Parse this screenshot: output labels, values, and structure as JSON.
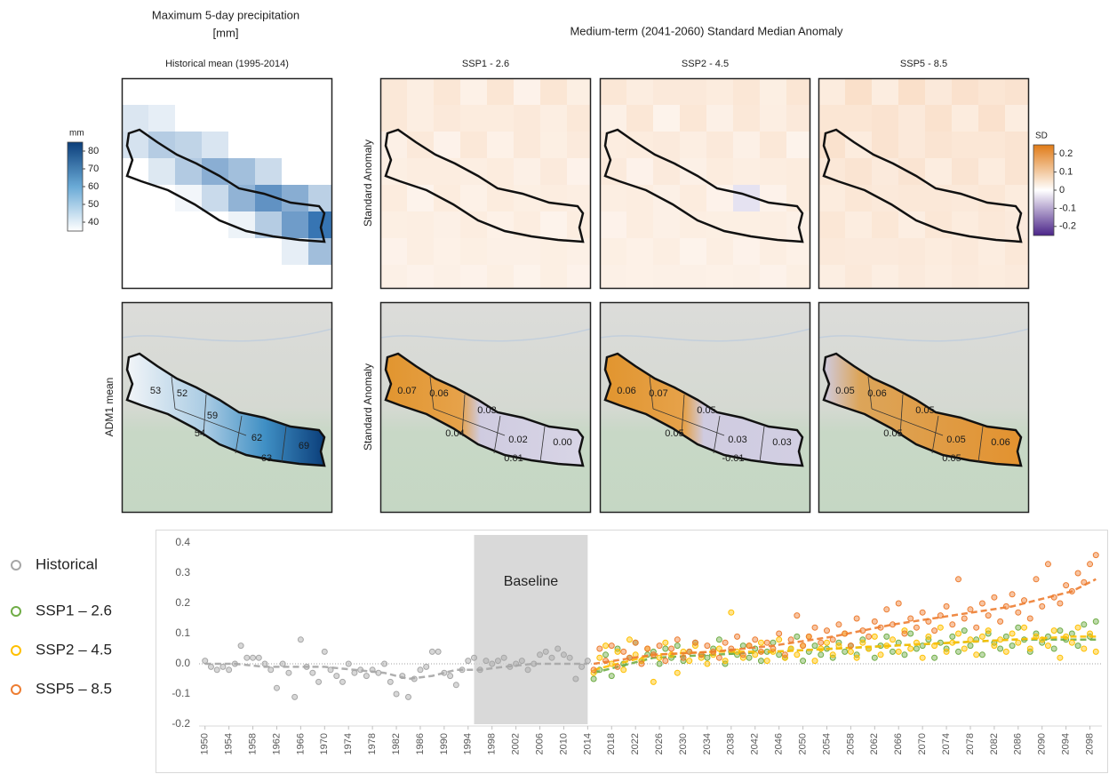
{
  "header": {
    "left_title": [
      "Maximum 5-day precipitation",
      "[mm]"
    ],
    "right_title": "Medium-term (2041-2060) Standard Median Anomaly"
  },
  "map_panels": {
    "columns": [
      "Historical mean (1995-2014)",
      "SSP1 - 2.6",
      "SSP2 - 4.5",
      "SSP5 - 8.5"
    ],
    "hist_row_label": "ADM1 mean",
    "anomaly_row_labels": [
      "Standard Anomaly",
      "Standard Anomaly"
    ],
    "adm1_labels": [
      [
        "53",
        "52",
        "59",
        "54",
        "62",
        "63",
        "69"
      ],
      [
        "0.07",
        "0.06",
        "0.03",
        "0.04",
        "0.02",
        "0.01",
        "0.00"
      ],
      [
        "0.06",
        "0.07",
        "0.05",
        "0.05",
        "0.03",
        "-0.01",
        "0.03"
      ],
      [
        "0.05",
        "0.06",
        "0.05",
        "0.05",
        "0.05",
        "0.05",
        "0.06"
      ]
    ]
  },
  "colorbars": {
    "mm": {
      "unit": "mm",
      "lim": [
        35,
        85
      ],
      "ticks": [
        40,
        50,
        60,
        70,
        80
      ]
    },
    "sd": {
      "unit": "SD",
      "lim": [
        -0.25,
        0.25
      ],
      "ticks": [
        0.2,
        0.1,
        0,
        -0.1,
        -0.2
      ]
    }
  },
  "chart_data": {
    "type": "scatter",
    "xlim": [
      1949,
      2100
    ],
    "xticks": [
      1950,
      1954,
      1958,
      1962,
      1966,
      1970,
      1974,
      1978,
      1982,
      1986,
      1990,
      1994,
      1998,
      2002,
      2006,
      2010,
      2014,
      2018,
      2022,
      2026,
      2030,
      2034,
      2038,
      2042,
      2046,
      2050,
      2054,
      2058,
      2062,
      2066,
      2070,
      2074,
      2078,
      2082,
      2086,
      2090,
      2094,
      2098
    ],
    "ylim": [
      -0.2,
      0.4
    ],
    "yticks": [
      -0.2,
      -0.1,
      {
        "value": 0,
        "label": "0.0"
      },
      0.1,
      0.2,
      0.3,
      0.4
    ],
    "grid": false,
    "legend": "left",
    "baseline": {
      "label": "Baseline",
      "range": [
        1995,
        2014
      ]
    },
    "series": [
      {
        "name": "Historical",
        "color": "#a6a6a6",
        "x": [
          1950,
          1951,
          1952,
          1953,
          1954,
          1955,
          1956,
          1957,
          1958,
          1959,
          1960,
          1961,
          1962,
          1963,
          1964,
          1965,
          1966,
          1967,
          1968,
          1969,
          1970,
          1971,
          1972,
          1973,
          1974,
          1975,
          1976,
          1977,
          1978,
          1979,
          1980,
          1981,
          1982,
          1983,
          1984,
          1985,
          1986,
          1987,
          1988,
          1989,
          1990,
          1991,
          1992,
          1993,
          1994,
          1995,
          1996,
          1997,
          1998,
          1999,
          2000,
          2001,
          2002,
          2003,
          2004,
          2005,
          2006,
          2007,
          2008,
          2009,
          2010,
          2011,
          2012,
          2013,
          2014
        ],
        "values": [
          0.01,
          -0.01,
          -0.02,
          -0.01,
          -0.02,
          0.0,
          0.06,
          0.02,
          0.02,
          0.02,
          0.0,
          -0.02,
          -0.08,
          0.0,
          -0.03,
          -0.11,
          0.08,
          -0.01,
          -0.03,
          -0.06,
          0.04,
          -0.02,
          -0.04,
          -0.06,
          0.0,
          -0.03,
          -0.02,
          -0.04,
          -0.02,
          -0.03,
          0.0,
          -0.06,
          -0.1,
          -0.04,
          -0.11,
          -0.05,
          -0.02,
          -0.01,
          0.04,
          0.04,
          -0.03,
          -0.04,
          -0.07,
          -0.02,
          0.01,
          0.02,
          -0.02,
          0.01,
          0.0,
          0.01,
          0.02,
          -0.01,
          0.0,
          0.01,
          -0.02,
          0.0,
          0.03,
          0.04,
          0.02,
          0.05,
          0.03,
          0.02,
          -0.05,
          -0.01,
          0.01
        ],
        "trend": {
          "x": [
            1950,
            1955,
            1960,
            1965,
            1970,
            1975,
            1980,
            1984,
            1988,
            1992,
            1996,
            2000,
            2005,
            2010,
            2014
          ],
          "values": [
            0.0,
            0.0,
            -0.01,
            -0.01,
            -0.01,
            -0.02,
            -0.03,
            -0.05,
            -0.04,
            -0.02,
            -0.02,
            -0.01,
            0.0,
            0.0,
            0.0
          ]
        }
      },
      {
        "name": "SSP1 – 2.6",
        "color": "#70ad47",
        "x": [
          2015,
          2016,
          2017,
          2018,
          2019,
          2020,
          2021,
          2022,
          2023,
          2024,
          2025,
          2026,
          2027,
          2028,
          2029,
          2030,
          2031,
          2032,
          2033,
          2034,
          2035,
          2036,
          2037,
          2038,
          2039,
          2040,
          2041,
          2042,
          2043,
          2044,
          2045,
          2046,
          2047,
          2048,
          2049,
          2050,
          2051,
          2052,
          2053,
          2054,
          2055,
          2056,
          2057,
          2058,
          2059,
          2060,
          2061,
          2062,
          2063,
          2064,
          2065,
          2066,
          2067,
          2068,
          2069,
          2070,
          2071,
          2072,
          2073,
          2074,
          2075,
          2076,
          2077,
          2078,
          2079,
          2080,
          2081,
          2082,
          2083,
          2084,
          2085,
          2086,
          2087,
          2088,
          2089,
          2090,
          2091,
          2092,
          2093,
          2094,
          2095,
          2096,
          2097,
          2098,
          2099
        ],
        "values": [
          -0.05,
          -0.02,
          0.03,
          -0.04,
          0.05,
          0.0,
          0.02,
          0.07,
          0.01,
          0.03,
          0.04,
          0.0,
          0.05,
          0.02,
          0.06,
          0.01,
          0.04,
          0.07,
          0.03,
          0.02,
          0.05,
          0.08,
          0.0,
          0.04,
          0.03,
          0.06,
          0.02,
          0.05,
          0.01,
          0.04,
          0.07,
          0.03,
          0.02,
          0.05,
          0.09,
          0.01,
          0.04,
          0.06,
          0.03,
          0.05,
          0.02,
          0.07,
          0.04,
          0.06,
          0.03,
          0.08,
          0.05,
          0.02,
          0.06,
          0.09,
          0.04,
          0.07,
          0.03,
          0.1,
          0.05,
          0.06,
          0.08,
          0.02,
          0.07,
          0.05,
          0.09,
          0.04,
          0.11,
          0.06,
          0.08,
          0.03,
          0.1,
          0.07,
          0.05,
          0.09,
          0.06,
          0.12,
          0.08,
          0.04,
          0.1,
          0.07,
          0.09,
          0.05,
          0.11,
          0.08,
          0.1,
          0.06,
          0.13,
          0.09,
          0.14
        ],
        "trend": {
          "x": [
            2015,
            2025,
            2035,
            2045,
            2055,
            2065,
            2075,
            2085,
            2095,
            2099
          ],
          "values": [
            -0.03,
            0.02,
            0.03,
            0.04,
            0.05,
            0.06,
            0.07,
            0.08,
            0.08,
            0.08
          ]
        }
      },
      {
        "name": "SSP2 – 4.5",
        "color": "#ffc000",
        "x": [
          2015,
          2016,
          2017,
          2018,
          2019,
          2020,
          2021,
          2022,
          2023,
          2024,
          2025,
          2026,
          2027,
          2028,
          2029,
          2030,
          2031,
          2032,
          2033,
          2034,
          2035,
          2036,
          2037,
          2038,
          2039,
          2040,
          2041,
          2042,
          2043,
          2044,
          2045,
          2046,
          2047,
          2048,
          2049,
          2050,
          2051,
          2052,
          2053,
          2054,
          2055,
          2056,
          2057,
          2058,
          2059,
          2060,
          2061,
          2062,
          2063,
          2064,
          2065,
          2066,
          2067,
          2068,
          2069,
          2070,
          2071,
          2072,
          2073,
          2074,
          2075,
          2076,
          2077,
          2078,
          2079,
          2080,
          2081,
          2082,
          2083,
          2084,
          2085,
          2086,
          2087,
          2088,
          2089,
          2090,
          2091,
          2092,
          2093,
          2094,
          2095,
          2096,
          2097,
          2098,
          2099
        ],
        "values": [
          -0.03,
          0.02,
          0.06,
          0.0,
          0.04,
          -0.02,
          0.08,
          0.03,
          0.01,
          0.05,
          -0.06,
          0.02,
          0.07,
          0.03,
          -0.03,
          0.04,
          0.01,
          0.06,
          0.02,
          0.0,
          0.03,
          0.05,
          0.01,
          0.17,
          0.04,
          0.02,
          0.06,
          0.03,
          0.07,
          0.01,
          0.04,
          0.08,
          0.02,
          0.05,
          0.03,
          0.06,
          0.09,
          0.01,
          0.05,
          0.07,
          0.03,
          0.06,
          0.1,
          0.04,
          0.02,
          0.07,
          0.05,
          0.09,
          0.03,
          0.06,
          0.08,
          0.04,
          0.11,
          0.05,
          0.07,
          0.02,
          0.09,
          0.06,
          0.12,
          0.04,
          0.07,
          0.1,
          0.05,
          0.08,
          0.03,
          0.09,
          0.11,
          0.06,
          0.08,
          0.04,
          0.1,
          0.07,
          0.12,
          0.05,
          0.09,
          0.08,
          0.06,
          0.11,
          0.02,
          0.09,
          0.07,
          0.12,
          0.05,
          0.1,
          0.04
        ],
        "trend": {
          "x": [
            2015,
            2025,
            2035,
            2045,
            2055,
            2065,
            2075,
            2085,
            2095,
            2099
          ],
          "values": [
            -0.02,
            0.03,
            0.04,
            0.04,
            0.05,
            0.06,
            0.07,
            0.08,
            0.09,
            0.09
          ]
        }
      },
      {
        "name": "SSP5 – 8.5",
        "color": "#ed7d31",
        "x": [
          2015,
          2016,
          2017,
          2018,
          2019,
          2020,
          2021,
          2022,
          2023,
          2024,
          2025,
          2026,
          2027,
          2028,
          2029,
          2030,
          2031,
          2032,
          2033,
          2034,
          2035,
          2036,
          2037,
          2038,
          2039,
          2040,
          2041,
          2042,
          2043,
          2044,
          2045,
          2046,
          2047,
          2048,
          2049,
          2050,
          2051,
          2052,
          2053,
          2054,
          2055,
          2056,
          2057,
          2058,
          2059,
          2060,
          2061,
          2062,
          2063,
          2064,
          2065,
          2066,
          2067,
          2068,
          2069,
          2070,
          2071,
          2072,
          2073,
          2074,
          2075,
          2076,
          2077,
          2078,
          2079,
          2080,
          2081,
          2082,
          2083,
          2084,
          2085,
          2086,
          2087,
          2088,
          2089,
          2090,
          2091,
          2092,
          2093,
          2094,
          2095,
          2096,
          2097,
          2098,
          2099
        ],
        "values": [
          -0.02,
          0.05,
          0.01,
          0.06,
          -0.01,
          0.04,
          0.02,
          0.07,
          0.0,
          0.05,
          0.03,
          0.06,
          0.01,
          0.05,
          0.08,
          0.02,
          0.04,
          0.07,
          0.03,
          0.06,
          0.04,
          0.02,
          0.07,
          0.05,
          0.09,
          0.03,
          0.06,
          0.08,
          0.04,
          0.07,
          0.05,
          0.1,
          0.03,
          0.08,
          0.16,
          0.06,
          0.09,
          0.12,
          0.07,
          0.11,
          0.08,
          0.13,
          0.1,
          0.06,
          0.15,
          0.11,
          0.09,
          0.14,
          0.12,
          0.18,
          0.13,
          0.2,
          0.1,
          0.15,
          0.12,
          0.17,
          0.14,
          0.11,
          0.16,
          0.19,
          0.13,
          0.28,
          0.15,
          0.18,
          0.12,
          0.2,
          0.16,
          0.22,
          0.14,
          0.19,
          0.23,
          0.17,
          0.21,
          0.15,
          0.28,
          0.19,
          0.33,
          0.22,
          0.2,
          0.26,
          0.24,
          0.3,
          0.27,
          0.33,
          0.36
        ],
        "trend": {
          "x": [
            2015,
            2025,
            2035,
            2045,
            2055,
            2065,
            2075,
            2085,
            2095,
            2099
          ],
          "values": [
            0.0,
            0.03,
            0.04,
            0.06,
            0.09,
            0.13,
            0.16,
            0.19,
            0.24,
            0.28
          ]
        }
      }
    ]
  }
}
